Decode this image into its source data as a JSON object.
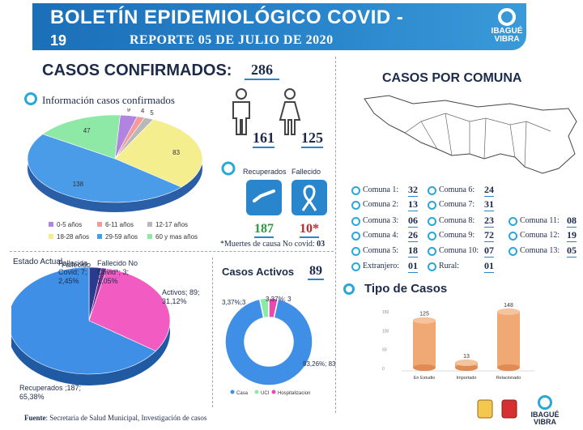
{
  "header": {
    "title": "BOLETÍN EPIDEMIOLÓGICO COVID -",
    "title_suffix": "19",
    "subtitle": "REPORTE 05 DE JULIO DE 2020",
    "logo_text_1": "IBAGUÉ",
    "logo_text_2": "VIBRA"
  },
  "confirmed": {
    "label": "CASOS CONFIRMADOS:",
    "value": "286",
    "info_label": "Información casos confirmados",
    "male": "161",
    "female": "125",
    "recovered_label": "Recuperados",
    "dead_label": "Fallecido",
    "recovered_value": "187",
    "dead_value": "10*",
    "note_text": "*Muertes de causa No covid: ",
    "note_value": "03"
  },
  "age_chart": {
    "legend": [
      "0-5 años",
      "6-11 años",
      "12-17 años",
      "18-28 años",
      "29-59 años",
      "60 y mas años"
    ],
    "colors": [
      "#b084e0",
      "#f59a9a",
      "#b8b8b8",
      "#f4ee8e",
      "#4a9be8",
      "#8ee8a6"
    ]
  },
  "estado": {
    "label": "Estado Actual",
    "fallecido_covid": "Fallecido Covid; 7; 2,45%",
    "fallecido_no_covid": "Fallecido No Covid*; 3; 1,05%",
    "activos": "Activos; 89; 31,12%",
    "recuperados": "Recuperados ;187; 65,38%"
  },
  "activos": {
    "label": "Casos Activos",
    "value": "89",
    "label_casa": "93,26%; 83",
    "label_uci": "3,37%;3",
    "label_hosp": "3,37%; 3",
    "legend": [
      "Casa",
      "UCI",
      "Hospitalizacion"
    ],
    "colors": [
      "#3f8fe6",
      "#8ee8a6",
      "#e84ab0"
    ]
  },
  "comuna": {
    "title": "CASOS POR COMUNA",
    "entries": [
      {
        "label": "Comuna 1:",
        "value": "32"
      },
      {
        "label": "Comuna 2:",
        "value": "13"
      },
      {
        "label": "Comuna 3:",
        "value": "06"
      },
      {
        "label": "Comuna 4:",
        "value": "26"
      },
      {
        "label": "Comuna 5:",
        "value": "18"
      },
      {
        "label": "Extranjero:",
        "value": "01"
      },
      {
        "label": "Comuna 6:",
        "value": "24"
      },
      {
        "label": "Comuna 7:",
        "value": "31"
      },
      {
        "label": "Comuna 8:",
        "value": "23"
      },
      {
        "label": "Comuna 9:",
        "value": "72"
      },
      {
        "label": "Comuna 10:",
        "value": "07"
      },
      {
        "label": "Rural:",
        "value": "01"
      },
      {
        "label": "Comuna 11:",
        "value": "08"
      },
      {
        "label": "Comuna 12:",
        "value": "19"
      },
      {
        "label": "Comuna 13:",
        "value": "05"
      }
    ]
  },
  "tipo": {
    "title": "Tipo de Casos"
  },
  "source": {
    "label": "Fuente",
    "text": ": Secretaria de Salud Municipal, Investigación de casos"
  },
  "chart_data": [
    {
      "type": "pie",
      "labels": [
        "0-5 años",
        "6-11 años",
        "12-17 años",
        "18-28 años",
        "29-59 años",
        "60 y mas años"
      ],
      "values": [
        9,
        4,
        5,
        83,
        138,
        47
      ]
    },
    {
      "type": "pie",
      "title": "Estado Actual",
      "labels": [
        "Fallecido Covid",
        "Fallecido No Covid*",
        "Activos",
        "Recuperados"
      ],
      "values": [
        7,
        3,
        89,
        187
      ],
      "percent": [
        2.45,
        1.05,
        31.12,
        65.38
      ],
      "colors": [
        "#2a3b8f",
        "#7a2c8c",
        "#f25bc2",
        "#3f8fe6"
      ]
    },
    {
      "type": "pie",
      "title": "Casos Activos",
      "labels": [
        "Casa",
        "UCI",
        "Hospitalizacion"
      ],
      "values": [
        83,
        3,
        3
      ],
      "percent": [
        93.26,
        3.37,
        3.37
      ]
    },
    {
      "type": "bar",
      "title": "Tipo de Casos",
      "categories": [
        "En Estudio",
        "Importado",
        "Relacionado"
      ],
      "values": [
        125,
        13,
        148
      ],
      "ylim": [
        0,
        150
      ],
      "yticks": [
        0,
        50,
        100,
        150
      ],
      "color": "#f0a875"
    }
  ]
}
